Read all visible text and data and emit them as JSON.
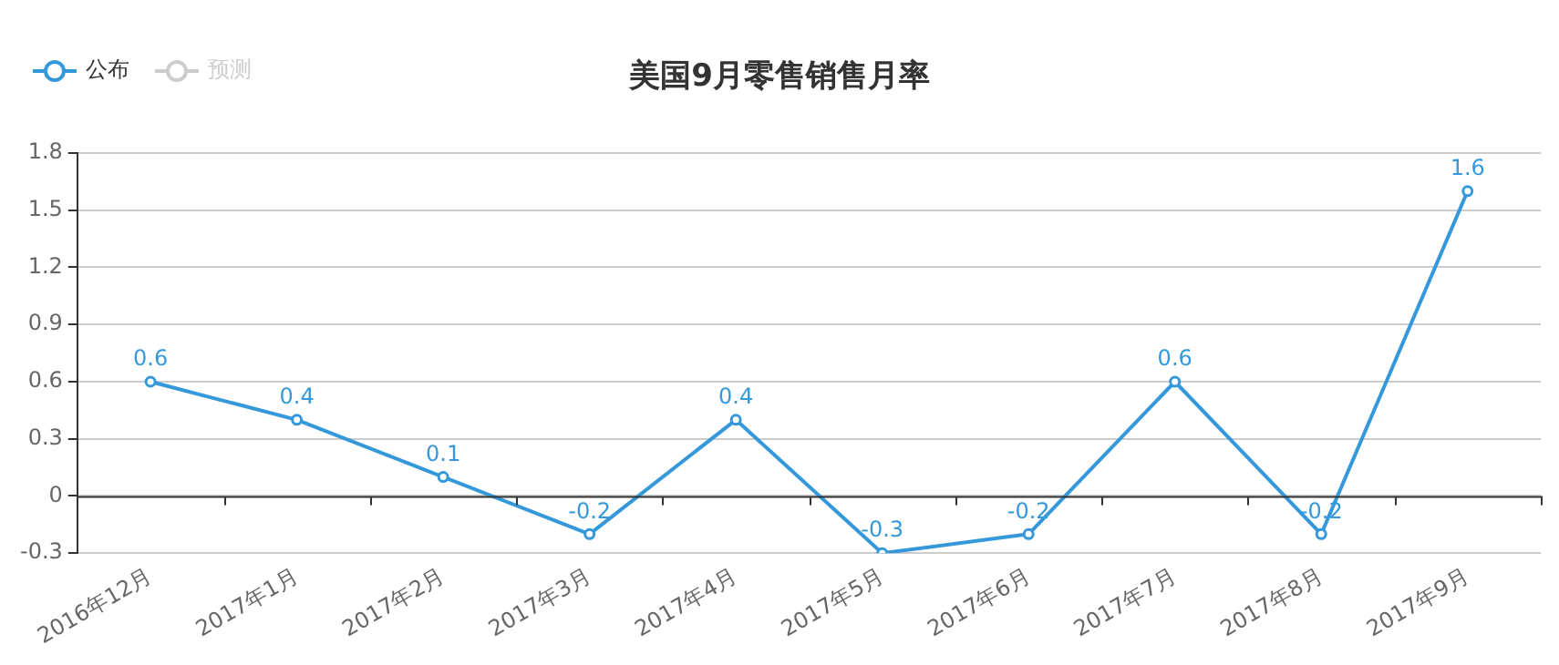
{
  "chart_data": {
    "type": "line",
    "title": "美国9月零售销售月率",
    "categories": [
      "2016年12月",
      "2017年1月",
      "2017年2月",
      "2017年3月",
      "2017年4月",
      "2017年5月",
      "2017年6月",
      "2017年7月",
      "2017年8月",
      "2017年9月"
    ],
    "series": [
      {
        "name": "公布",
        "color": "#3498db",
        "values": [
          0.6,
          0.4,
          0.1,
          -0.2,
          0.4,
          -0.3,
          -0.2,
          0.6,
          -0.2,
          1.6
        ]
      },
      {
        "name": "预测",
        "color": "#cccccc",
        "values": [
          null,
          null,
          null,
          null,
          null,
          null,
          null,
          null,
          null,
          null
        ]
      }
    ],
    "ylim": [
      -0.3,
      1.8
    ],
    "yticks": [
      -0.3,
      0,
      0.3,
      0.6,
      0.9,
      1.2,
      1.5,
      1.8
    ],
    "grid": "y",
    "legend": "top left",
    "marker": "circle",
    "line_style": "solid",
    "data_labels": true
  }
}
